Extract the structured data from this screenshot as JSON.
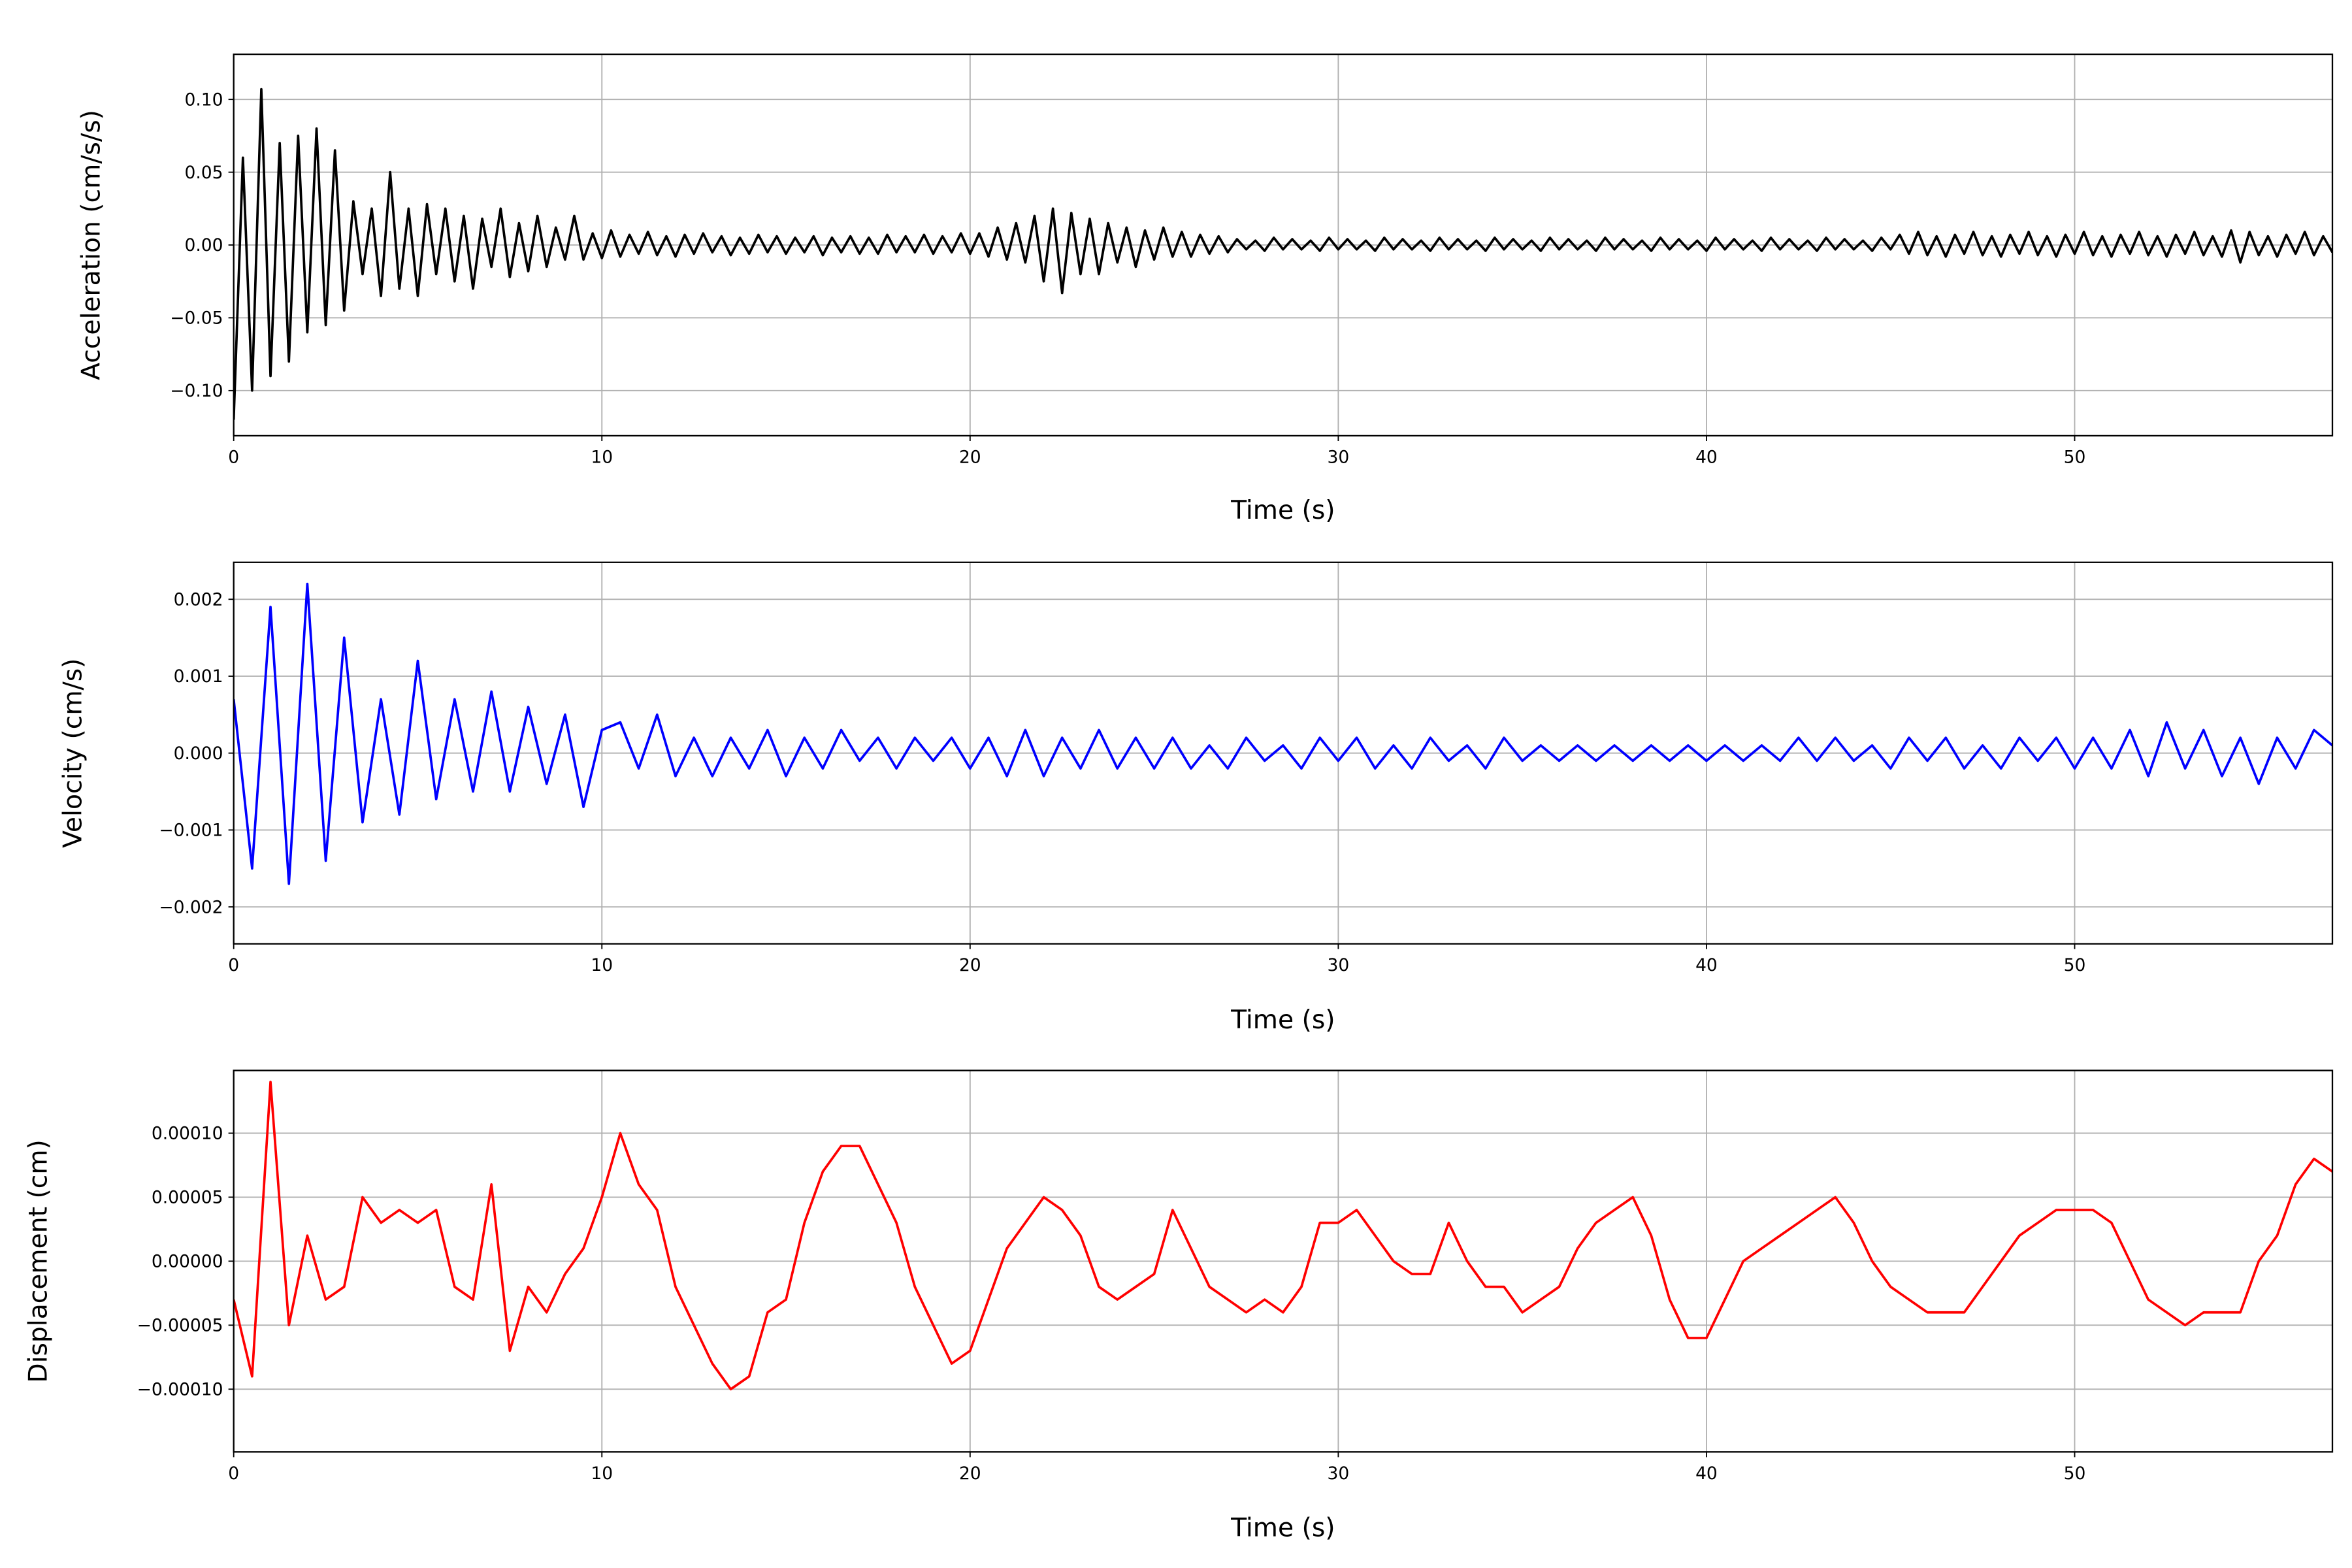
{
  "chart_data": [
    {
      "type": "line",
      "title": "",
      "xlabel": "Time (s)",
      "ylabel": "Acceleration (cm/s/s)",
      "xlim": [
        0,
        57
      ],
      "ylim": [
        -0.131,
        0.131
      ],
      "xticks": [
        0,
        10,
        20,
        30,
        40,
        50
      ],
      "xtick_labels": [
        "0",
        "10",
        "20",
        "30",
        "40",
        "50"
      ],
      "yticks": [
        -0.1,
        -0.05,
        0.0,
        0.05,
        0.1
      ],
      "ytick_labels": [
        "−0.10",
        "−0.05",
        "0.00",
        "0.05",
        "0.10"
      ],
      "grid": true,
      "color": "#000000",
      "x_start": 0,
      "x_step": 0.25,
      "values": [
        -0.12,
        0.06,
        -0.1,
        0.107,
        -0.09,
        0.07,
        -0.08,
        0.075,
        -0.06,
        0.08,
        -0.055,
        0.065,
        -0.045,
        0.03,
        -0.02,
        0.025,
        -0.035,
        0.05,
        -0.03,
        0.025,
        -0.035,
        0.028,
        -0.02,
        0.025,
        -0.025,
        0.02,
        -0.03,
        0.018,
        -0.015,
        0.025,
        -0.022,
        0.015,
        -0.018,
        0.02,
        -0.015,
        0.012,
        -0.01,
        0.02,
        -0.01,
        0.008,
        -0.009,
        0.01,
        -0.008,
        0.007,
        -0.006,
        0.009,
        -0.007,
        0.006,
        -0.008,
        0.007,
        -0.006,
        0.008,
        -0.005,
        0.006,
        -0.007,
        0.005,
        -0.006,
        0.007,
        -0.005,
        0.006,
        -0.006,
        0.005,
        -0.005,
        0.006,
        -0.007,
        0.005,
        -0.005,
        0.006,
        -0.006,
        0.005,
        -0.006,
        0.007,
        -0.005,
        0.006,
        -0.005,
        0.007,
        -0.006,
        0.006,
        -0.005,
        0.008,
        -0.006,
        0.008,
        -0.008,
        0.012,
        -0.01,
        0.015,
        -0.012,
        0.02,
        -0.025,
        0.025,
        -0.033,
        0.022,
        -0.02,
        0.018,
        -0.02,
        0.015,
        -0.012,
        0.012,
        -0.015,
        0.01,
        -0.01,
        0.012,
        -0.008,
        0.009,
        -0.008,
        0.007,
        -0.006,
        0.006,
        -0.005,
        0.004,
        -0.003,
        0.003,
        -0.004,
        0.005,
        -0.003,
        0.004,
        -0.003,
        0.003,
        -0.004,
        0.005,
        -0.003,
        0.004,
        -0.003,
        0.003,
        -0.004,
        0.005,
        -0.003,
        0.004,
        -0.003,
        0.003,
        -0.004,
        0.005,
        -0.003,
        0.004,
        -0.003,
        0.003,
        -0.004,
        0.005,
        -0.003,
        0.004,
        -0.003,
        0.003,
        -0.004,
        0.005,
        -0.003,
        0.004,
        -0.003,
        0.003,
        -0.004,
        0.005,
        -0.003,
        0.004,
        -0.003,
        0.003,
        -0.004,
        0.005,
        -0.003,
        0.004,
        -0.003,
        0.003,
        -0.004,
        0.005,
        -0.003,
        0.004,
        -0.003,
        0.003,
        -0.004,
        0.005,
        -0.003,
        0.004,
        -0.003,
        0.003,
        -0.004,
        0.005,
        -0.003,
        0.004,
        -0.003,
        0.003,
        -0.004,
        0.005,
        -0.003,
        0.007,
        -0.006,
        0.009,
        -0.007,
        0.006,
        -0.008,
        0.007,
        -0.006,
        0.009,
        -0.007,
        0.006,
        -0.008,
        0.007,
        -0.006,
        0.009,
        -0.007,
        0.006,
        -0.008,
        0.007,
        -0.006,
        0.009,
        -0.007,
        0.006,
        -0.008,
        0.007,
        -0.006,
        0.009,
        -0.007,
        0.006,
        -0.008,
        0.007,
        -0.006,
        0.009,
        -0.007,
        0.006,
        -0.008,
        0.01,
        -0.012,
        0.009,
        -0.007,
        0.006,
        -0.008,
        0.007,
        -0.006,
        0.009,
        -0.007,
        0.006,
        -0.005
      ]
    },
    {
      "type": "line",
      "title": "",
      "xlabel": "Time (s)",
      "ylabel": "Velocity (cm/s)",
      "xlim": [
        0,
        57
      ],
      "ylim": [
        -0.00248,
        0.00248
      ],
      "xticks": [
        0,
        10,
        20,
        30,
        40,
        50
      ],
      "xtick_labels": [
        "0",
        "10",
        "20",
        "30",
        "40",
        "50"
      ],
      "yticks": [
        -0.002,
        -0.001,
        0.0,
        0.001,
        0.002
      ],
      "ytick_labels": [
        "−0.002",
        "−0.001",
        "0.000",
        "0.001",
        "0.002"
      ],
      "grid": true,
      "color": "#0000ff",
      "x_start": 0,
      "x_step": 0.5,
      "values": [
        0.0007,
        -0.0015,
        0.0019,
        -0.0017,
        0.0022,
        -0.0014,
        0.0015,
        -0.0009,
        0.0007,
        -0.0008,
        0.0012,
        -0.0006,
        0.0007,
        -0.0005,
        0.0008,
        -0.0005,
        0.0006,
        -0.0004,
        0.0005,
        -0.0007,
        0.0003,
        0.0004,
        -0.0002,
        0.0005,
        -0.0003,
        0.0002,
        -0.0003,
        0.0002,
        -0.0002,
        0.0003,
        -0.0003,
        0.0002,
        -0.0002,
        0.0003,
        -0.0001,
        0.0002,
        -0.0002,
        0.0002,
        -0.0001,
        0.0002,
        -0.0002,
        0.0002,
        -0.0003,
        0.0003,
        -0.0003,
        0.0002,
        -0.0002,
        0.0003,
        -0.0002,
        0.0002,
        -0.0002,
        0.0002,
        -0.0002,
        0.0001,
        -0.0002,
        0.0002,
        -0.0001,
        0.0001,
        -0.0002,
        0.0002,
        -0.0001,
        0.0002,
        -0.0002,
        0.0001,
        -0.0002,
        0.0002,
        -0.0001,
        0.0001,
        -0.0002,
        0.0002,
        -0.0001,
        0.0001,
        -0.0001,
        0.0001,
        -0.0001,
        0.0001,
        -0.0001,
        0.0001,
        -0.0001,
        0.0001,
        -0.0001,
        0.0001,
        -0.0001,
        0.0001,
        -0.0001,
        0.0002,
        -0.0001,
        0.0002,
        -0.0001,
        0.0001,
        -0.0002,
        0.0002,
        -0.0001,
        0.0002,
        -0.0002,
        0.0001,
        -0.0002,
        0.0002,
        -0.0001,
        0.0002,
        -0.0002,
        0.0002,
        -0.0002,
        0.0003,
        -0.0003,
        0.0004,
        -0.0002,
        0.0003,
        -0.0003,
        0.0002,
        -0.0004,
        0.0002,
        -0.0002,
        0.0003,
        0.0001
      ]
    },
    {
      "type": "line",
      "title": "",
      "xlabel": "Time (s)",
      "ylabel": "Displacement (cm)",
      "xlim": [
        0,
        57
      ],
      "ylim": [
        -0.000149,
        0.000149
      ],
      "xticks": [
        0,
        10,
        20,
        30,
        40,
        50
      ],
      "xtick_labels": [
        "0",
        "10",
        "20",
        "30",
        "40",
        "50"
      ],
      "yticks": [
        -0.0001,
        -5e-05,
        0.0,
        5e-05,
        0.0001
      ],
      "ytick_labels": [
        "−0.00010",
        "−0.00005",
        "0.00000",
        "0.00005",
        "0.00010"
      ],
      "grid": true,
      "color": "#ff0000",
      "x_start": 0,
      "x_step": 0.5,
      "values": [
        -3e-05,
        -9e-05,
        0.00014,
        -5e-05,
        2e-05,
        -3e-05,
        -2e-05,
        5e-05,
        3e-05,
        4e-05,
        3e-05,
        4e-05,
        -2e-05,
        -3e-05,
        6e-05,
        -7e-05,
        -2e-05,
        -4e-05,
        -1e-05,
        1e-05,
        5e-05,
        0.0001,
        6e-05,
        4e-05,
        -2e-05,
        -5e-05,
        -8e-05,
        -0.0001,
        -9e-05,
        -4e-05,
        -3e-05,
        3e-05,
        7e-05,
        9e-05,
        9e-05,
        6e-05,
        3e-05,
        -2e-05,
        -5e-05,
        -8e-05,
        -7e-05,
        -3e-05,
        1e-05,
        3e-05,
        5e-05,
        4e-05,
        2e-05,
        -2e-05,
        -3e-05,
        -2e-05,
        -1e-05,
        4e-05,
        1e-05,
        -2e-05,
        -3e-05,
        -4e-05,
        -3e-05,
        -4e-05,
        -2e-05,
        3e-05,
        3e-05,
        4e-05,
        2e-05,
        0,
        -1e-05,
        -1e-05,
        3e-05,
        0,
        -2e-05,
        -2e-05,
        -4e-05,
        -3e-05,
        -2e-05,
        1e-05,
        3e-05,
        4e-05,
        5e-05,
        2e-05,
        -3e-05,
        -6e-05,
        -6e-05,
        -3e-05,
        0,
        1e-05,
        2e-05,
        3e-05,
        4e-05,
        5e-05,
        3e-05,
        0,
        -2e-05,
        -3e-05,
        -4e-05,
        -4e-05,
        -4e-05,
        -2e-05,
        0,
        2e-05,
        3e-05,
        4e-05,
        4e-05,
        4e-05,
        3e-05,
        0,
        -3e-05,
        -4e-05,
        -5e-05,
        -4e-05,
        -4e-05,
        -4e-05,
        0,
        2e-05,
        6e-05,
        8e-05,
        7e-05
      ]
    }
  ]
}
